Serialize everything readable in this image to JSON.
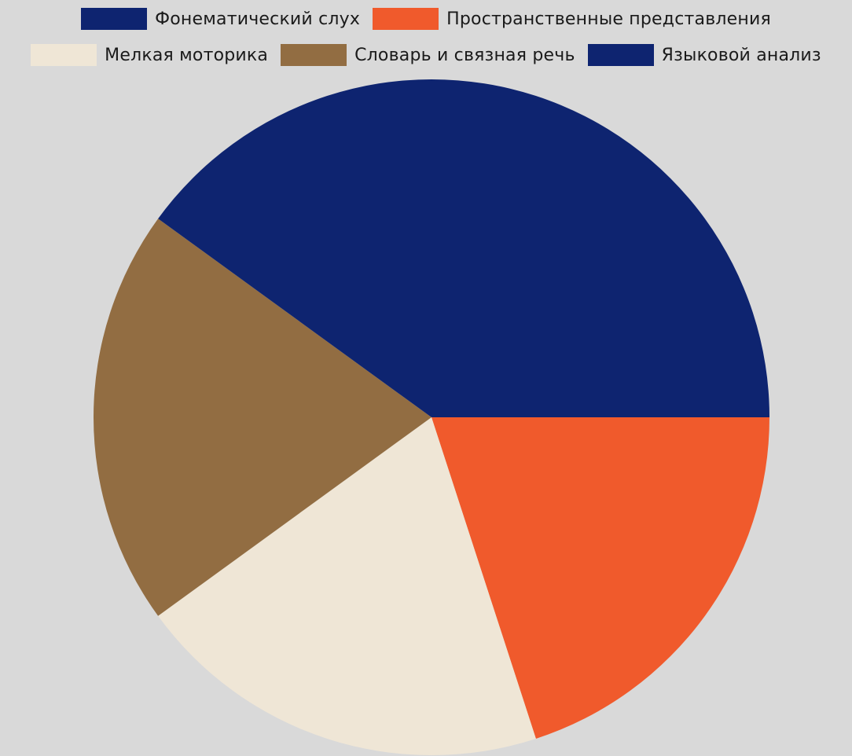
{
  "chart_data": {
    "type": "pie",
    "title": "",
    "legend_position": "top",
    "slices": [
      {
        "label": "Фонематический слух",
        "value": 0,
        "color": "#0e2470"
      },
      {
        "label": "Пространственные представления",
        "value": 20,
        "color": "#f05a2c"
      },
      {
        "label": "Мелкая моторика",
        "value": 20,
        "color": "#efe6d6"
      },
      {
        "label": "Словарь и связная речь",
        "value": 20,
        "color": "#926d42"
      },
      {
        "label": "Языковой анализ",
        "value": 40,
        "color": "#0e2470"
      }
    ]
  },
  "legend": {
    "rows": [
      [
        {
          "label": "Фонематический слух",
          "color": "#0e2470"
        },
        {
          "label": "Пространственные представления",
          "color": "#f05a2c"
        }
      ],
      [
        {
          "label": "Мелкая моторика",
          "color": "#efe6d6"
        },
        {
          "label": "Словарь и связная речь",
          "color": "#926d42"
        },
        {
          "label": "Языковой анализ",
          "color": "#0e2470"
        }
      ]
    ]
  }
}
